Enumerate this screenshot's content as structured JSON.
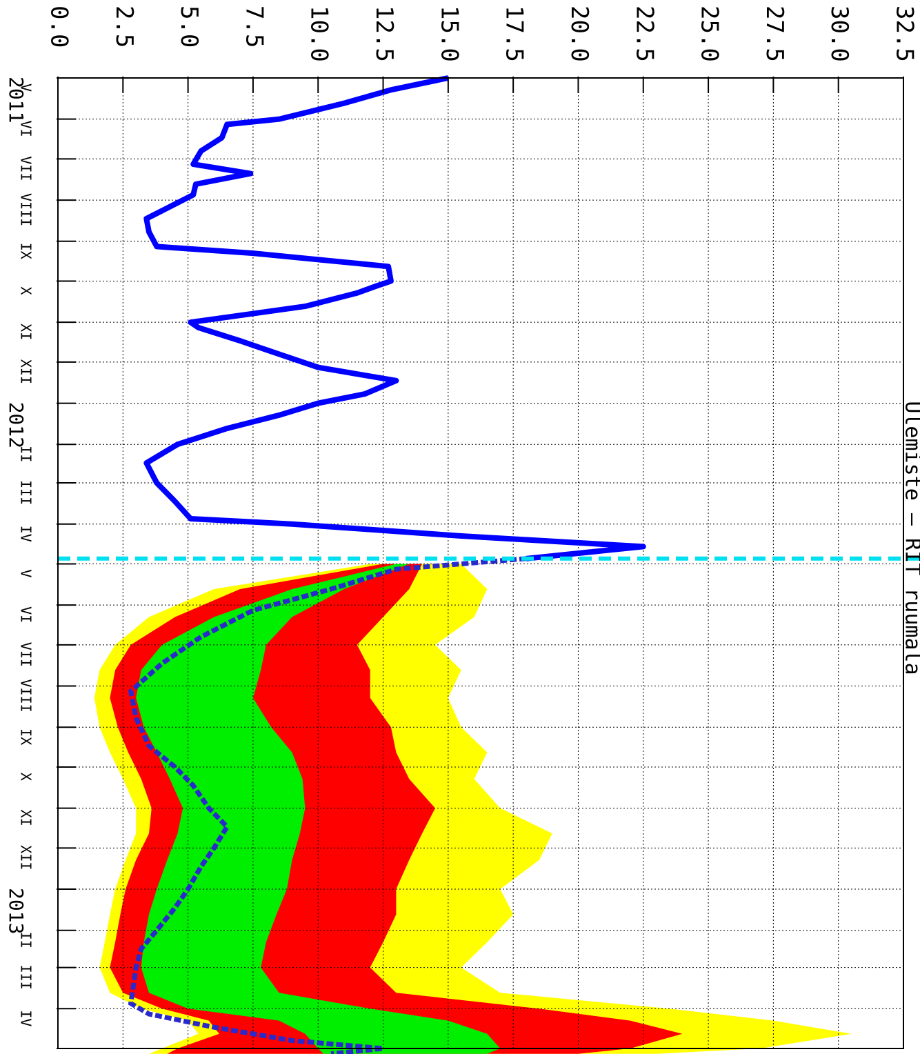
{
  "chart_data": {
    "type": "area",
    "title": "Ülemiste – RIT ruumala",
    "orientation": "rotated-90-clockwise",
    "ylim": [
      0,
      32.5
    ],
    "y_ticks": [
      "0.0",
      "2.5",
      "5.0",
      "7.5",
      "10.0",
      "12.5",
      "15.0",
      "17.5",
      "20.0",
      "22.5",
      "25.0",
      "27.5",
      "30.0",
      "32.5"
    ],
    "x_start": "2011-05",
    "x_end": "2013-05",
    "forecast_start": "2012-04-27",
    "grid": true,
    "year_labels": [
      {
        "label": "2011",
        "date": "2011-05"
      },
      {
        "label": "2012",
        "date": "2012-01"
      },
      {
        "label": "2013",
        "date": "2013-01"
      }
    ],
    "month_labels": [
      "V",
      "VI",
      "VII",
      "VIII",
      "IX",
      "X",
      "XI",
      "XII",
      "II",
      "III",
      "IV",
      "V",
      "VI",
      "VII",
      "VIII",
      "IX",
      "X",
      "XI",
      "XII",
      "II",
      "III",
      "IV",
      "V"
    ],
    "colors": {
      "observed": "#0000ff",
      "forecast_median": "#2a2acc",
      "forecast_start_line": "#00e0f0",
      "band_outer": "#ffff00",
      "band_middle": "#ff0000",
      "band_inner": "#00ee00",
      "grid": "#000000"
    },
    "observed": {
      "name": "",
      "x": [
        "2011-05-01",
        "2011-05-10",
        "2011-05-20",
        "2011-06-01",
        "2011-06-05",
        "2011-06-15",
        "2011-06-25",
        "2011-07-05",
        "2011-07-12",
        "2011-07-20",
        "2011-07-28",
        "2011-08-05",
        "2011-08-15",
        "2011-08-25",
        "2011-09-05",
        "2011-09-10",
        "2011-09-20",
        "2011-10-01",
        "2011-10-05",
        "2011-10-10",
        "2011-10-20",
        "2011-11-01",
        "2011-11-05",
        "2011-11-15",
        "2011-11-25",
        "2011-12-05",
        "2011-12-15",
        "2011-12-25",
        "2012-01-01",
        "2012-01-10",
        "2012-01-20",
        "2012-02-01",
        "2012-02-15",
        "2012-03-01",
        "2012-03-15",
        "2012-03-28",
        "2012-04-01",
        "2012-04-10",
        "2012-04-18",
        "2012-04-22",
        "2012-04-27"
      ],
      "values": [
        15.0,
        12.8,
        11.0,
        8.5,
        6.5,
        6.3,
        5.5,
        5.2,
        7.4,
        5.3,
        5.2,
        4.4,
        3.4,
        3.5,
        3.8,
        7.5,
        12.7,
        12.8,
        12.2,
        11.5,
        9.5,
        5.1,
        5.4,
        7.0,
        8.5,
        10.0,
        13.0,
        11.8,
        10.0,
        8.5,
        6.5,
        4.6,
        3.4,
        3.8,
        4.5,
        5.1,
        9.0,
        15.5,
        22.5,
        20.5,
        18.0
      ]
    },
    "forecast_median": {
      "name": "",
      "x": [
        "2012-04-27",
        "2012-05-05",
        "2012-05-20",
        "2012-06-05",
        "2012-06-25",
        "2012-07-15",
        "2012-08-05",
        "2012-08-25",
        "2012-09-15",
        "2012-10-01",
        "2012-10-15",
        "2012-11-01",
        "2012-11-15",
        "2012-12-01",
        "2012-12-15",
        "2013-01-01",
        "2013-01-15",
        "2013-02-01",
        "2013-02-15",
        "2013-03-01",
        "2013-03-15",
        "2013-03-28",
        "2013-04-05",
        "2013-04-15",
        "2013-04-25",
        "2013-05-01",
        "2013-05-05"
      ],
      "values": [
        18.0,
        13.0,
        10.5,
        7.5,
        5.5,
        4.0,
        2.8,
        3.0,
        3.5,
        4.5,
        5.2,
        5.8,
        6.5,
        6.0,
        5.5,
        5.0,
        4.5,
        3.8,
        3.2,
        3.0,
        2.9,
        2.8,
        3.5,
        6.0,
        9.0,
        12.5,
        10.5
      ]
    },
    "bands": {
      "x": [
        "2012-05-01",
        "2012-05-20",
        "2012-06-10",
        "2012-07-01",
        "2012-07-20",
        "2012-08-10",
        "2012-09-01",
        "2012-09-20",
        "2012-10-10",
        "2012-11-01",
        "2012-11-20",
        "2012-12-10",
        "2013-01-01",
        "2013-01-20",
        "2013-02-10",
        "2013-03-01",
        "2013-03-20",
        "2013-04-01",
        "2013-04-10",
        "2013-04-20",
        "2013-05-01",
        "2013-05-05"
      ],
      "outer_low": [
        12.0,
        6.0,
        3.5,
        2.2,
        1.6,
        1.4,
        1.6,
        2.0,
        2.5,
        3.0,
        3.0,
        2.6,
        2.2,
        2.0,
        1.8,
        1.6,
        2.0,
        3.2,
        5.0,
        5.4,
        4.0,
        3.5
      ],
      "middle_low": [
        12.5,
        7.0,
        4.5,
        2.8,
        2.2,
        2.0,
        2.3,
        2.7,
        3.2,
        3.6,
        3.5,
        3.0,
        2.6,
        2.4,
        2.2,
        2.0,
        2.5,
        4.0,
        5.8,
        6.2,
        4.6,
        4.2
      ],
      "inner_low": [
        13.0,
        9.0,
        6.0,
        4.0,
        3.2,
        3.0,
        3.3,
        3.8,
        4.3,
        4.8,
        4.6,
        4.2,
        3.8,
        3.5,
        3.3,
        3.2,
        3.5,
        5.0,
        8.5,
        9.5,
        10.0,
        10.2
      ],
      "inner_high": [
        13.5,
        11.0,
        9.0,
        8.0,
        7.8,
        7.5,
        8.2,
        9.0,
        9.4,
        9.5,
        9.3,
        9.0,
        8.8,
        8.4,
        8.0,
        7.8,
        8.5,
        12.0,
        15.0,
        16.5,
        17.0,
        16.5
      ],
      "middle_high": [
        14.0,
        13.5,
        12.5,
        11.5,
        12.0,
        12.0,
        12.8,
        13.0,
        13.5,
        14.5,
        14.0,
        13.5,
        13.0,
        13.0,
        12.5,
        12.0,
        13.0,
        18.5,
        22.0,
        24.0,
        22.0,
        20.0
      ],
      "outer_high": [
        15.5,
        16.5,
        16.0,
        14.5,
        15.5,
        15.0,
        15.5,
        16.5,
        16.0,
        17.0,
        19.0,
        18.5,
        17.0,
        17.5,
        16.5,
        15.5,
        17.0,
        23.5,
        27.5,
        30.5,
        27.0,
        23.0
      ]
    }
  }
}
